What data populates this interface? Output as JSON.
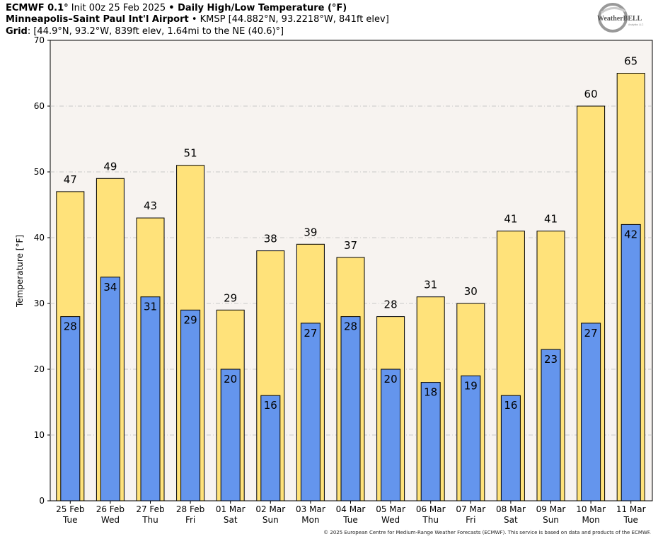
{
  "header": {
    "model": "ECMWF 0.1°",
    "init": " Init 00z 25 Feb 2025 ",
    "bullet1": "•",
    "product": " Daily High/Low Temperature (°F)",
    "station": "Minneapolis–Saint Paul Int'l Airport",
    "bullet2": " • ",
    "station_info": "KMSP [44.882°N, 93.2218°W, 841ft elev]",
    "grid_label": "Grid",
    "grid_info": ": [44.9°N, 93.2°W, 839ft elev, 1.64mi to the NE (40.6)°]"
  },
  "logo": {
    "text": "WeatherBELL",
    "sub": "Analytics LLC"
  },
  "copyright": "© 2025 European Centre for Medium-Range Weather Forecasts (ECMWF). This service is based on data and products of the ECMWF.",
  "colors": {
    "high": "#ffe27a",
    "low": "#6495ed",
    "plot_bg": "#f7f3f0",
    "grid": "#bbbbbb"
  },
  "chart_data": {
    "type": "bar",
    "title": "Daily High/Low Temperature (°F)",
    "ylabel": "Temperature [°F]",
    "xlabel": "",
    "ylim": [
      0,
      70
    ],
    "yticks": [
      0,
      10,
      20,
      30,
      40,
      50,
      60,
      70
    ],
    "categories": [
      "25 Feb",
      "26 Feb",
      "27 Feb",
      "28 Feb",
      "01 Mar",
      "02 Mar",
      "03 Mar",
      "04 Mar",
      "05 Mar",
      "06 Mar",
      "07 Mar",
      "08 Mar",
      "09 Mar",
      "10 Mar",
      "11 Mar"
    ],
    "weekdays": [
      "Tue",
      "Wed",
      "Thu",
      "Fri",
      "Sat",
      "Sun",
      "Mon",
      "Tue",
      "Wed",
      "Thu",
      "Fri",
      "Sat",
      "Sun",
      "Mon",
      "Tue"
    ],
    "series": [
      {
        "name": "High",
        "values": [
          47,
          49,
          43,
          51,
          29,
          38,
          39,
          37,
          28,
          31,
          30,
          41,
          41,
          60,
          65
        ]
      },
      {
        "name": "Low",
        "values": [
          28,
          34,
          31,
          29,
          20,
          16,
          27,
          28,
          20,
          18,
          19,
          16,
          23,
          27,
          42
        ]
      }
    ]
  }
}
